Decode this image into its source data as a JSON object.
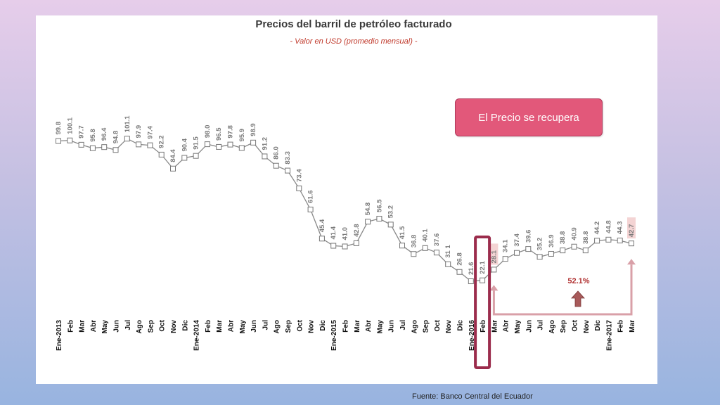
{
  "callout": {
    "text": "El Precio se recupera"
  },
  "source": "Fuente: Banco Central del Ecuador",
  "colors": {
    "line": "#888888",
    "highlight_box": "#9b2c4c",
    "arrow": "#d9a0a8",
    "pct_arrow": "#a85a5a",
    "callout_bg": "#e2587a",
    "label_highlight_bg": "#f4d4d4"
  },
  "chart_data": {
    "type": "line",
    "title": "Precios del barril de petróleo facturado",
    "subtitle": "- Valor en USD (promedio mensual) -",
    "categories": [
      "Ene-2013",
      "Feb",
      "Mar",
      "Abr",
      "May",
      "Jun",
      "Jul",
      "Ago",
      "Sep",
      "Oct",
      "Nov",
      "Dic",
      "Ene-2014",
      "Feb",
      "Mar",
      "Abr",
      "May",
      "Jun",
      "Jul",
      "Ago",
      "Sep",
      "Oct",
      "Nov",
      "Dic",
      "Ene-2015",
      "Feb",
      "Mar",
      "Abr",
      "May",
      "Jun",
      "Jul",
      "Ago",
      "Sep",
      "Oct",
      "Nov",
      "Dic",
      "Ene-2016",
      "Feb",
      "Mar",
      "Abr",
      "May",
      "Jun",
      "Jul",
      "Ago",
      "Sep",
      "Oct",
      "Nov",
      "Dic",
      "Ene-2017",
      "Feb",
      "Mar"
    ],
    "series": [
      {
        "values": [
          99.8,
          100.1,
          97.7,
          95.8,
          96.4,
          94.8,
          101.1,
          97.9,
          97.4,
          92.2,
          84.4,
          90.4,
          91.5,
          98.0,
          96.5,
          97.8,
          95.9,
          98.9,
          91.2,
          86.0,
          83.3,
          73.4,
          61.6,
          45.4,
          41.4,
          41.0,
          42.8,
          54.8,
          56.5,
          53.2,
          41.5,
          36.8,
          40.1,
          37.6,
          31.1,
          26.8,
          21.6,
          22.1,
          28.1,
          34.1,
          37.4,
          39.6,
          35.2,
          36.9,
          38.8,
          40.9,
          38.8,
          44.2,
          44.8,
          44.3,
          42.7
        ],
        "labels": [
          "99.8",
          "100.1",
          "97.7",
          "95.8",
          "96.4",
          "94.8",
          "101.1",
          "97.9",
          "97.4",
          "92.2",
          "84.4",
          "90.4",
          "91.5",
          "98.0",
          "96.5",
          "97.8",
          "95.9",
          "98.9",
          "91.2",
          "86.0",
          "83.3",
          "73.4",
          "61.6",
          "45.4",
          "41.4",
          "41.0",
          "42.8",
          "54.8",
          "56.5",
          "53.2",
          "41.5",
          "36.8",
          "40.1",
          "37.6",
          "31 1",
          "26.8",
          "21.6",
          "22.1",
          "28.1",
          "34.1",
          "37.4",
          "39.6",
          "35.2",
          "36.9",
          "38.8",
          "40.9",
          "38.8",
          "44.2",
          "44.8",
          "44.3",
          "42.7"
        ]
      }
    ],
    "highlighted_labels": [
      38,
      50
    ],
    "highlighted_category": 37,
    "annotation": "52.1%",
    "grid": false,
    "legend": "none"
  }
}
